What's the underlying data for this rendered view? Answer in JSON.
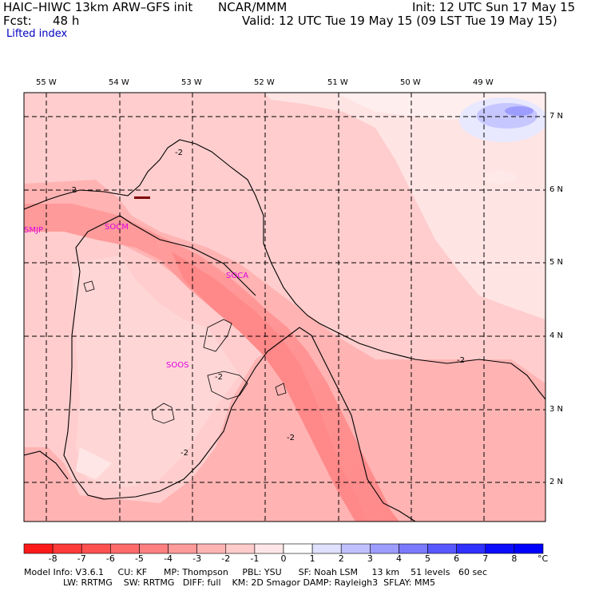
{
  "header": {
    "model_title": "HAIC–HIWC 13km ARW–GFS init",
    "org": "NCAR/MMM",
    "init": "Init: 12 UTC Sun 17 May 15",
    "fcst_label": "Fcst:",
    "fcst_value": "48 h",
    "valid": "Valid: 12 UTC Tue 19 May 15 (09 LST Tue 19 May 15)",
    "field": "Lifted index"
  },
  "map": {
    "longitude_labels": [
      "55 W",
      "54 W",
      "53 W",
      "52 W",
      "51 W",
      "50 W",
      "49 W"
    ],
    "latitude_labels": [
      "7 N",
      "6 N",
      "5 N",
      "4 N",
      "3 N",
      "2 N"
    ],
    "stations": [
      "SMJP",
      "SOCM",
      "SOCA",
      "SOOS"
    ],
    "contour_labels": [
      "-2",
      "-2",
      "-2",
      "-2",
      "-2",
      "-2"
    ]
  },
  "colorbar": {
    "ticks": [
      "-8",
      "-7",
      "-6",
      "-5",
      "-4",
      "-3",
      "-2",
      "-1",
      "0",
      "1",
      "2",
      "3",
      "4",
      "5",
      "6",
      "7",
      "8"
    ],
    "unit": "°C",
    "colors": [
      "#ff1a1a",
      "#ff3a3a",
      "#ff5050",
      "#ff6a6a",
      "#ff8080",
      "#ff9a9a",
      "#ffb4b4",
      "#ffcccc",
      "#ffe6e6",
      "#ffffff",
      "#e0e0ff",
      "#c0c0ff",
      "#9d9dff",
      "#7a7aff",
      "#5858ff",
      "#3030ff",
      "#0c0cff",
      "#0000ff"
    ]
  },
  "model_info": {
    "line1": "Model Info: V3.6.1     CU: KF      MP: Thompson     PBL: YSU      SF: Noah LSM     13 km    51 levels   60 sec",
    "line2": "              LW: RRTMG    SW: RRTMG   DIFF: full    KM: 2D Smagor DAMP: Rayleigh3  SFLAY: MM5"
  }
}
